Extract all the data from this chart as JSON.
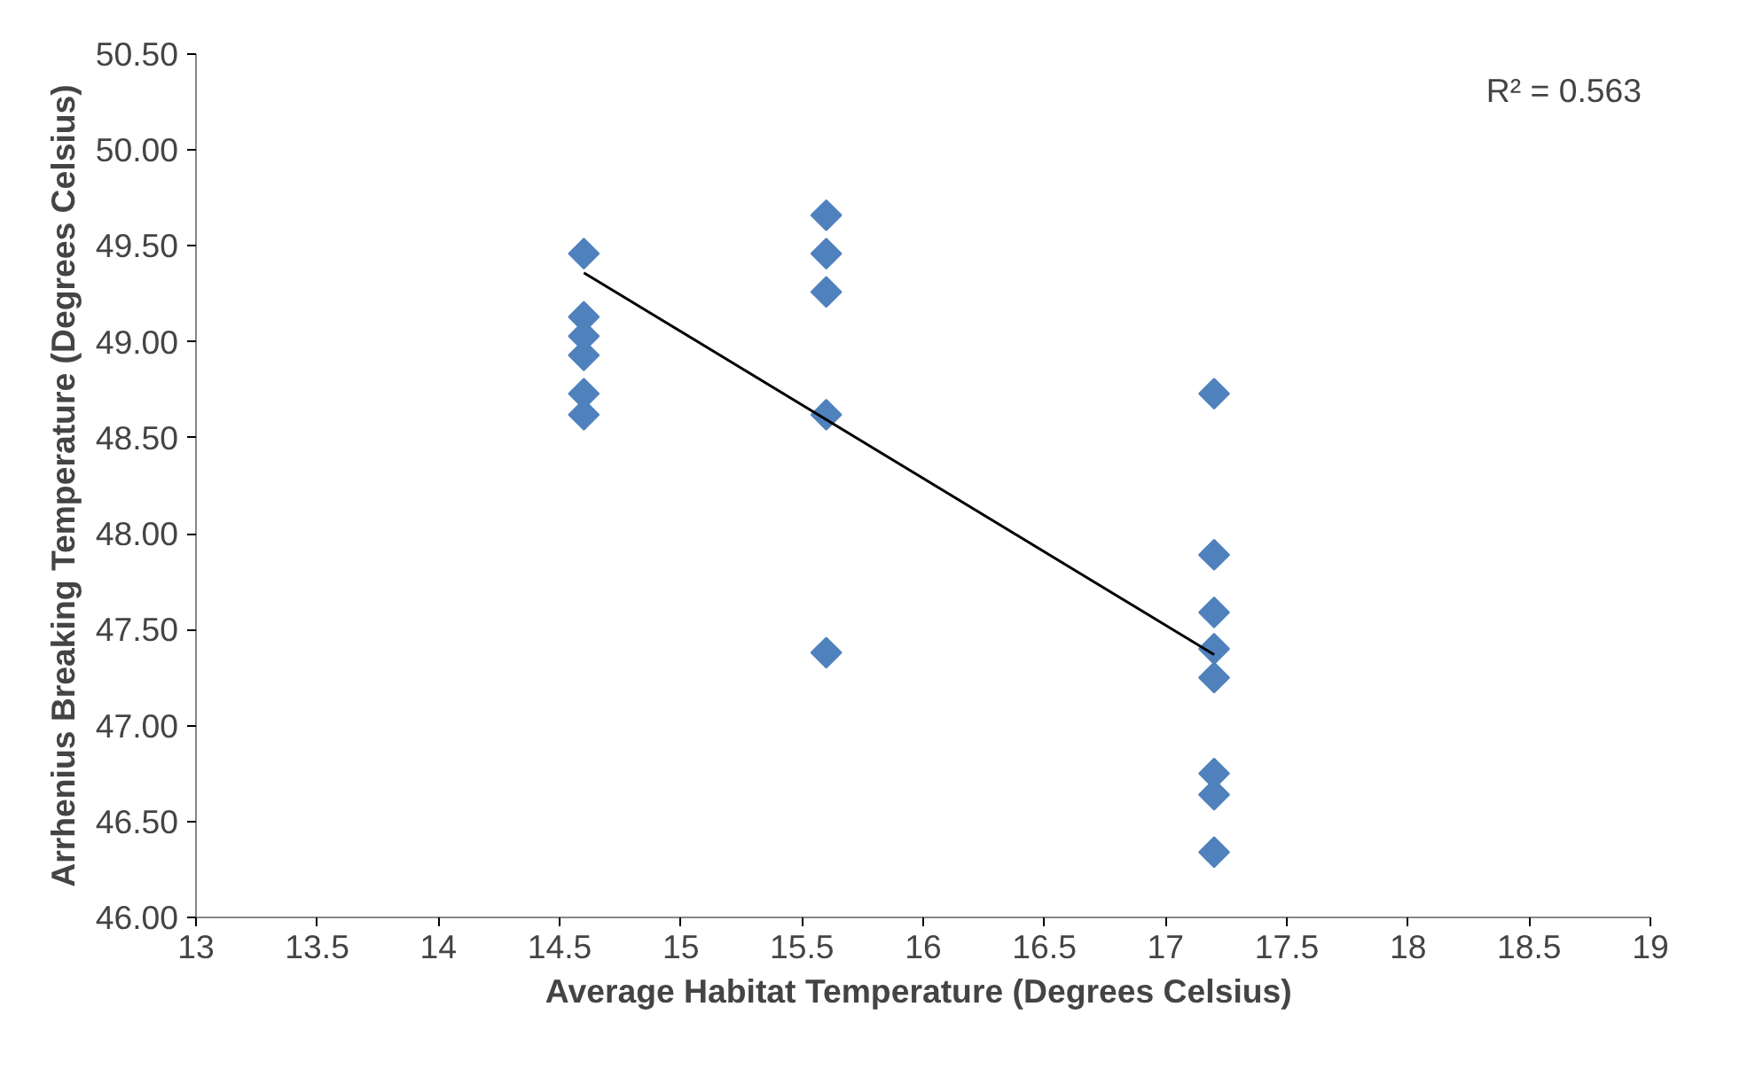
{
  "chart_data": {
    "type": "scatter",
    "xlabel": "Average Habitat  Temperature (Degrees Celsius)",
    "ylabel": "Arrhenius Breaking Temperature (Degrees Celsius)",
    "marker": "diamond",
    "grid": false,
    "xlim": [
      13,
      19
    ],
    "xticks": [
      13,
      13.5,
      14,
      14.5,
      15,
      15.5,
      16,
      16.5,
      17,
      17.5,
      18,
      18.5,
      19
    ],
    "ylim": [
      46,
      50.5
    ],
    "yticks": [
      {
        "value": 46,
        "label": "46.00"
      },
      {
        "value": 46.5,
        "label": "46.50"
      },
      {
        "value": 47,
        "label": "47.00"
      },
      {
        "value": 47.5,
        "label": "47.50"
      },
      {
        "value": 48,
        "label": "48.00"
      },
      {
        "value": 48.5,
        "label": "48.50"
      },
      {
        "value": 49,
        "label": "49.00"
      },
      {
        "value": 49.5,
        "label": "49.50"
      },
      {
        "value": 50,
        "label": "50.00"
      },
      {
        "value": 50.5,
        "label": "50.50"
      }
    ],
    "annotations": [
      "R² = 0.563"
    ],
    "series": [
      {
        "color": "#4f81bd",
        "x": [
          14.6,
          14.6,
          14.6,
          14.6,
          14.6,
          14.6,
          15.6,
          15.6,
          15.6,
          15.6,
          15.6,
          17.2,
          17.2,
          17.2,
          17.2,
          17.2,
          17.2,
          17.2,
          17.2
        ],
        "values": [
          49.46,
          49.13,
          49.03,
          48.93,
          48.73,
          48.62,
          49.66,
          49.46,
          49.26,
          48.62,
          47.38,
          48.73,
          47.89,
          47.59,
          47.4,
          47.25,
          46.75,
          46.64,
          46.34
        ]
      },
      {
        "type": "line",
        "color": "#000000",
        "marker": "none",
        "line_style": "solid",
        "x": [
          14.6,
          17.2
        ],
        "values": [
          49.36,
          47.37
        ]
      }
    ]
  }
}
